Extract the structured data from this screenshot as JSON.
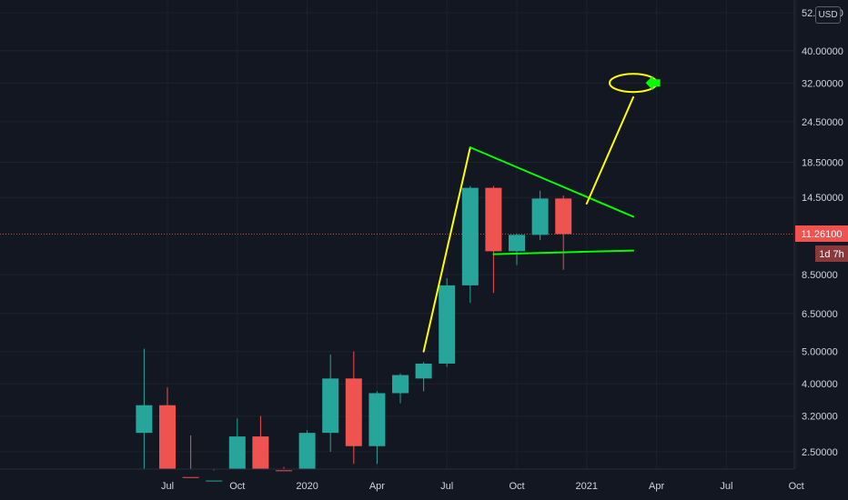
{
  "chart_data": {
    "type": "candlestick",
    "title": "",
    "xlabel": "",
    "ylabel": "",
    "y_scale": "log",
    "ylim": [
      2.1,
      58
    ],
    "currency": "USD",
    "current_price": "11.26100",
    "countdown": "1d 7h",
    "y_ticks": [
      "52.00000",
      "40.00000",
      "32.00000",
      "24.50000",
      "18.50000",
      "14.50000",
      "8.50000",
      "6.50000",
      "5.00000",
      "4.00000",
      "3.20000",
      "2.50000"
    ],
    "x_ticks": [
      {
        "label": "Jul",
        "month": "2019-07"
      },
      {
        "label": "Oct",
        "month": "2019-10"
      },
      {
        "label": "2020",
        "month": "2020-01"
      },
      {
        "label": "Apr",
        "month": "2020-04"
      },
      {
        "label": "Jul",
        "month": "2020-07"
      },
      {
        "label": "Oct",
        "month": "2020-10"
      },
      {
        "label": "2021",
        "month": "2021-01"
      },
      {
        "label": "Apr",
        "month": "2021-04"
      },
      {
        "label": "Jul",
        "month": "2021-07"
      },
      {
        "label": "Oct",
        "month": "2021-10"
      }
    ],
    "candles": [
      {
        "month": "2019-06",
        "open": 2.85,
        "high": 5.1,
        "low": 2.0,
        "close": 3.45
      },
      {
        "month": "2019-07",
        "open": 3.45,
        "high": 3.9,
        "low": 2.0,
        "close": 2.1
      },
      {
        "month": "2019-08",
        "open": 2.1,
        "high": 2.8,
        "low": 2.0,
        "close": 2.05
      },
      {
        "month": "2019-09",
        "open": 2.05,
        "high": 2.2,
        "low": 2.0,
        "close": 2.05
      },
      {
        "month": "2019-10",
        "open": 2.1,
        "high": 3.15,
        "low": 2.0,
        "close": 2.78
      },
      {
        "month": "2019-11",
        "open": 2.78,
        "high": 3.2,
        "low": 2.0,
        "close": 2.2
      },
      {
        "month": "2019-12",
        "open": 2.2,
        "high": 2.25,
        "low": 2.0,
        "close": 2.15
      },
      {
        "month": "2020-01",
        "open": 2.15,
        "high": 2.9,
        "low": 2.0,
        "close": 2.85
      },
      {
        "month": "2020-02",
        "open": 2.85,
        "high": 4.9,
        "low": 2.5,
        "close": 4.15
      },
      {
        "month": "2020-03",
        "open": 4.15,
        "high": 5.0,
        "low": 2.3,
        "close": 2.6
      },
      {
        "month": "2020-04",
        "open": 2.6,
        "high": 3.8,
        "low": 2.3,
        "close": 3.75
      },
      {
        "month": "2020-05",
        "open": 3.75,
        "high": 4.3,
        "low": 3.5,
        "close": 4.25
      },
      {
        "month": "2020-06",
        "open": 4.15,
        "high": 4.65,
        "low": 3.8,
        "close": 4.6
      },
      {
        "month": "2020-07",
        "open": 4.6,
        "high": 8.3,
        "low": 4.5,
        "close": 7.9
      },
      {
        "month": "2020-08",
        "open": 7.9,
        "high": 15.7,
        "low": 7.0,
        "close": 15.5
      },
      {
        "month": "2020-09",
        "open": 15.5,
        "high": 15.7,
        "low": 7.5,
        "close": 10.0
      },
      {
        "month": "2020-10",
        "open": 10.0,
        "high": 11.3,
        "low": 9.1,
        "close": 11.2
      },
      {
        "month": "2020-11",
        "open": 11.2,
        "high": 15.2,
        "low": 10.8,
        "close": 14.4
      },
      {
        "month": "2020-12",
        "open": 14.4,
        "high": 14.7,
        "low": 8.8,
        "close": 11.26
      }
    ],
    "colors": {
      "background": "#131722",
      "grid": "#1e222d",
      "up": "#26a69a",
      "down": "#ef5350",
      "price_line": "#ef5350",
      "annotation_yellow": "#ffff00",
      "annotation_green": "#00ff00",
      "text": "#d1d4dc"
    },
    "annotations": [
      {
        "type": "line",
        "color": "yellow",
        "from": {
          "month": "2020-06",
          "price": 5.0
        },
        "to": {
          "month": "2020-08",
          "price": 20.5
        }
      },
      {
        "type": "line",
        "color": "green",
        "from": {
          "month": "2020-08",
          "price": 20.5
        },
        "to": {
          "month": "2021-03",
          "price": 12.7
        }
      },
      {
        "type": "line",
        "color": "green",
        "from": {
          "month": "2020-09",
          "price": 9.8
        },
        "to": {
          "month": "2021-03",
          "price": 10.05
        }
      },
      {
        "type": "line",
        "color": "yellow",
        "from": {
          "month": "2021-01",
          "price": 13.9
        },
        "to": {
          "month": "2021-03",
          "price": 29.0
        }
      },
      {
        "type": "ellipse",
        "color": "yellow",
        "center": {
          "month": "2021-03",
          "price": 32.0
        }
      },
      {
        "type": "arrow",
        "color": "green",
        "direction": "left",
        "at": {
          "month": "2021-04",
          "price": 32.0
        }
      }
    ]
  }
}
